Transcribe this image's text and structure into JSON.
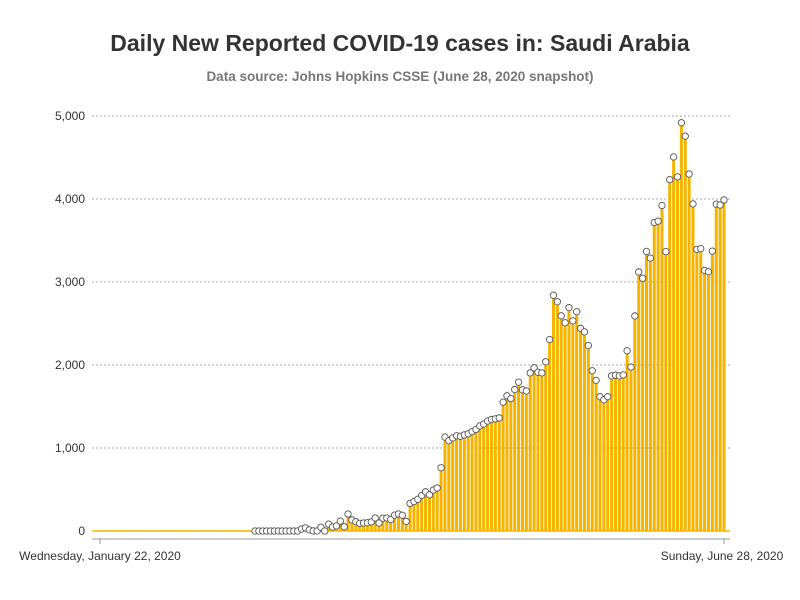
{
  "header": {
    "title": "Daily New Reported COVID-19 cases in: Saudi Arabia",
    "subtitle": "Data source: Johns Hopkins CSSE (June 28, 2020 snapshot)"
  },
  "colors": {
    "bar": "#f5b400",
    "bar_edge": "#ffffff",
    "marker_fill": "#ffffff",
    "marker_stroke": "#555555",
    "grid": "#aaaaaa",
    "axis": "#999999"
  },
  "chart_data": {
    "type": "bar",
    "title": "Daily New Reported COVID-19 cases in: Saudi Arabia",
    "subtitle": "Data source: Johns Hopkins CSSE (June 28, 2020 snapshot)",
    "xlabel": "",
    "ylabel": "",
    "ylim": [
      0,
      5000
    ],
    "grid": true,
    "y_ticks": [
      0,
      1000,
      2000,
      3000,
      4000,
      5000
    ],
    "y_tick_labels": [
      "0",
      "1,000",
      "2,000",
      "3,000",
      "4,000",
      "5,000"
    ],
    "x_tick_labels": [
      "Wednesday, January 22, 2020",
      "Sunday, June 28, 2020"
    ],
    "start_date": "2020-01-22",
    "end_date": "2020-06-28",
    "first_marker_date": "2020-03-02",
    "values": [
      0,
      0,
      0,
      0,
      0,
      0,
      0,
      0,
      0,
      0,
      0,
      0,
      0,
      0,
      0,
      0,
      0,
      0,
      0,
      0,
      0,
      0,
      0,
      0,
      0,
      0,
      0,
      0,
      0,
      0,
      0,
      0,
      0,
      0,
      0,
      0,
      0,
      0,
      0,
      0,
      0,
      0,
      0,
      0,
      0,
      0,
      0,
      0,
      0,
      0,
      0,
      0,
      24,
      38,
      14,
      1,
      0,
      45,
      0,
      83,
      48,
      62,
      119,
      51,
      205,
      133,
      112,
      92,
      96,
      99,
      110,
      157,
      96,
      154,
      157,
      138,
      191,
      205,
      190,
      115,
      333,
      355,
      382,
      429,
      472,
      435,
      493,
      518,
      762,
      1132,
      1088,
      1122,
      1147,
      1141,
      1158,
      1172,
      1197,
      1223,
      1266,
      1289,
      1325,
      1344,
      1351,
      1362,
      1552,
      1629,
      1595,
      1704,
      1793,
      1701,
      1687,
      1905,
      1966,
      1912,
      1905,
      2039,
      2307,
      2840,
      2762,
      2593,
      2509,
      2691,
      2532,
      2642,
      2442,
      2399,
      2235,
      1931,
      1815,
      1618,
      1581,
      1618,
      1869,
      1877,
      1869,
      1881,
      2171,
      1975,
      2591,
      3121,
      3045,
      3369,
      3288,
      3717,
      3733,
      3921,
      3366,
      4233,
      4507,
      4267,
      4919,
      4757,
      4301,
      3941,
      3393,
      3402,
      3139,
      3123,
      3372,
      3938,
      3927,
      3989
    ]
  }
}
